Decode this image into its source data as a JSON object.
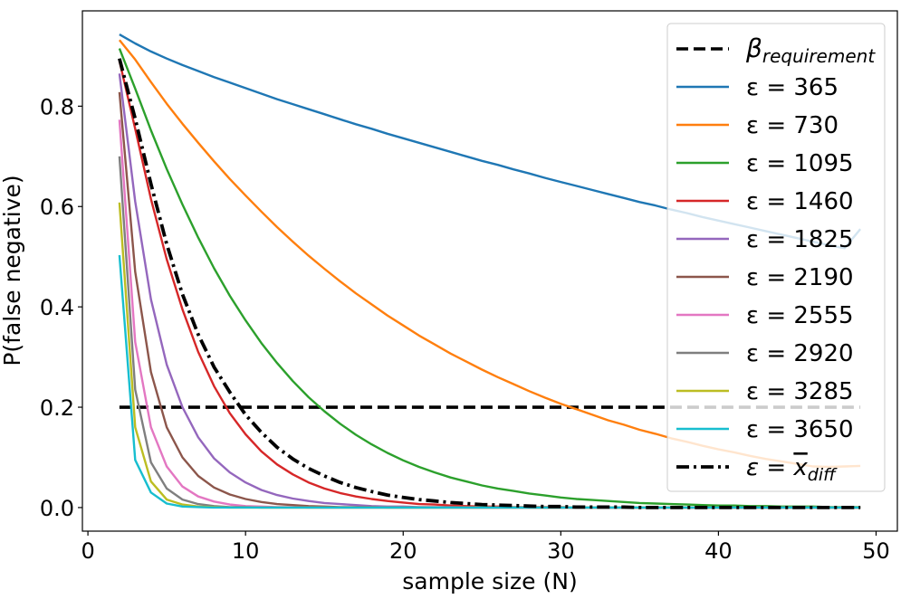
{
  "chart_data": {
    "type": "line",
    "title": "",
    "xlabel": "sample size (N)",
    "ylabel": "P(false negative)",
    "xlim": [
      -0.35,
      51.35
    ],
    "ylim": [
      -0.047,
      0.99
    ],
    "xticks": [
      0,
      10,
      20,
      30,
      40,
      50
    ],
    "yticks": [
      0.0,
      0.2,
      0.4,
      0.6,
      0.8
    ],
    "ytick_labels": [
      "0.0",
      "0.2",
      "0.4",
      "0.6",
      "0.8"
    ],
    "grid": false,
    "legend_position": "upper right",
    "x": [
      2,
      3,
      4,
      5,
      6,
      7,
      8,
      9,
      10,
      11,
      12,
      13,
      14,
      15,
      16,
      17,
      18,
      19,
      20,
      21,
      22,
      23,
      24,
      25,
      26,
      27,
      28,
      29,
      30,
      31,
      32,
      33,
      34,
      35,
      36,
      37,
      38,
      39,
      40,
      41,
      42,
      43,
      44,
      45,
      46,
      47,
      48,
      49
    ],
    "threshold": {
      "name": "β_requirement",
      "name_base": "β",
      "name_sub": "requirement",
      "value": 0.2,
      "x_range": [
        2,
        49
      ],
      "color": "#000000",
      "style": "dashed"
    },
    "series": [
      {
        "name": "ε = 365",
        "color": "#1f77b4",
        "values": [
          0.943,
          0.925,
          0.909,
          0.895,
          0.882,
          0.87,
          0.858,
          0.847,
          0.836,
          0.825,
          0.814,
          0.804,
          0.794,
          0.784,
          0.774,
          0.764,
          0.755,
          0.745,
          0.736,
          0.727,
          0.718,
          0.709,
          0.7,
          0.691,
          0.683,
          0.674,
          0.666,
          0.657,
          0.649,
          0.641,
          0.633,
          0.625,
          0.617,
          0.609,
          0.602,
          0.594,
          0.587,
          0.579,
          0.572,
          0.565,
          0.558,
          0.551,
          0.544,
          0.537,
          0.53,
          0.523,
          0.517,
          0.555
        ]
      },
      {
        "name": "ε = 730",
        "color": "#ff7f0e",
        "values": [
          0.932,
          0.893,
          0.848,
          0.805,
          0.765,
          0.727,
          0.69,
          0.655,
          0.622,
          0.59,
          0.559,
          0.53,
          0.502,
          0.476,
          0.451,
          0.427,
          0.405,
          0.383,
          0.363,
          0.343,
          0.325,
          0.307,
          0.291,
          0.275,
          0.26,
          0.246,
          0.232,
          0.219,
          0.207,
          0.196,
          0.185,
          0.174,
          0.165,
          0.155,
          0.147,
          0.138,
          0.131,
          0.123,
          0.116,
          0.11,
          0.103,
          0.097,
          0.092,
          0.087,
          0.082,
          0.081,
          0.082,
          0.083
        ]
      },
      {
        "name": "ε = 1095",
        "color": "#2ca02c",
        "values": [
          0.915,
          0.835,
          0.752,
          0.675,
          0.604,
          0.538,
          0.477,
          0.422,
          0.373,
          0.328,
          0.288,
          0.252,
          0.22,
          0.192,
          0.167,
          0.145,
          0.126,
          0.109,
          0.094,
          0.081,
          0.07,
          0.06,
          0.052,
          0.044,
          0.038,
          0.033,
          0.028,
          0.024,
          0.02,
          0.017,
          0.015,
          0.013,
          0.011,
          0.009,
          0.008,
          0.007,
          0.006,
          0.005,
          0.004,
          0.004,
          0.003,
          0.003,
          0.002,
          0.002,
          0.002,
          0.001,
          0.001,
          0.001
        ]
      },
      {
        "name": "ε = 1460",
        "color": "#d62728",
        "values": [
          0.89,
          0.755,
          0.615,
          0.495,
          0.395,
          0.31,
          0.242,
          0.188,
          0.146,
          0.112,
          0.086,
          0.066,
          0.05,
          0.038,
          0.029,
          0.022,
          0.017,
          0.013,
          0.01,
          0.007,
          0.006,
          0.004,
          0.003,
          0.002,
          0.002,
          0.001,
          0.001,
          0.001,
          0.001,
          0.0,
          0.0,
          0.0,
          0.0,
          0.0,
          0.0,
          0.0,
          0.0,
          0.0,
          0.0,
          0.0,
          0.0,
          0.0,
          0.0,
          0.0,
          0.0,
          0.0,
          0.0,
          0.0
        ]
      },
      {
        "name": "ε = 1825",
        "color": "#9467bd",
        "values": [
          0.865,
          0.61,
          0.415,
          0.285,
          0.2,
          0.14,
          0.098,
          0.07,
          0.05,
          0.035,
          0.025,
          0.018,
          0.013,
          0.009,
          0.007,
          0.005,
          0.003,
          0.002,
          0.002,
          0.001,
          0.001,
          0.001,
          0.0,
          0.0,
          0.0,
          0.0,
          0.0,
          0.0,
          0.0,
          0.0,
          0.0,
          0.0,
          0.0,
          0.0,
          0.0,
          0.0,
          0.0,
          0.0,
          0.0,
          0.0,
          0.0,
          0.0,
          0.0,
          0.0,
          0.0,
          0.0,
          0.0,
          0.0
        ]
      },
      {
        "name": "ε = 2190",
        "color": "#8c564b",
        "values": [
          0.828,
          0.47,
          0.27,
          0.16,
          0.1,
          0.063,
          0.04,
          0.026,
          0.017,
          0.011,
          0.007,
          0.005,
          0.003,
          0.002,
          0.001,
          0.001,
          0.001,
          0.0,
          0.0,
          0.0,
          0.0,
          0.0,
          0.0,
          0.0,
          0.0,
          0.0,
          0.0,
          0.0,
          0.0,
          0.0,
          0.0,
          0.0,
          0.0,
          0.0,
          0.0,
          0.0,
          0.0,
          0.0,
          0.0,
          0.0,
          0.0,
          0.0,
          0.0,
          0.0,
          0.0,
          0.0,
          0.0,
          0.0
        ]
      },
      {
        "name": "ε = 2555",
        "color": "#e377c2",
        "values": [
          0.773,
          0.33,
          0.16,
          0.082,
          0.042,
          0.022,
          0.012,
          0.006,
          0.003,
          0.002,
          0.001,
          0.001,
          0.0,
          0.0,
          0.0,
          0.0,
          0.0,
          0.0,
          0.0,
          0.0,
          0.0,
          0.0,
          0.0,
          0.0,
          0.0,
          0.0,
          0.0,
          0.0,
          0.0,
          0.0,
          0.0,
          0.0,
          0.0,
          0.0,
          0.0,
          0.0,
          0.0,
          0.0,
          0.0,
          0.0,
          0.0,
          0.0,
          0.0,
          0.0,
          0.0,
          0.0,
          0.0,
          0.0
        ]
      },
      {
        "name": "ε = 2920",
        "color": "#7f7f7f",
        "values": [
          0.7,
          0.235,
          0.09,
          0.038,
          0.016,
          0.007,
          0.003,
          0.001,
          0.001,
          0.0,
          0.0,
          0.0,
          0.0,
          0.0,
          0.0,
          0.0,
          0.0,
          0.0,
          0.0,
          0.0,
          0.0,
          0.0,
          0.0,
          0.0,
          0.0,
          0.0,
          0.0,
          0.0,
          0.0,
          0.0,
          0.0,
          0.0,
          0.0,
          0.0,
          0.0,
          0.0,
          0.0,
          0.0,
          0.0,
          0.0,
          0.0,
          0.0,
          0.0,
          0.0,
          0.0,
          0.0,
          0.0,
          0.0
        ]
      },
      {
        "name": "ε = 3285",
        "color": "#bcbd22",
        "values": [
          0.608,
          0.16,
          0.052,
          0.016,
          0.006,
          0.002,
          0.001,
          0.0,
          0.0,
          0.0,
          0.0,
          0.0,
          0.0,
          0.0,
          0.0,
          0.0,
          0.0,
          0.0,
          0.0,
          0.0,
          0.0,
          0.0,
          0.0,
          0.0,
          0.0,
          0.0,
          0.0,
          0.0,
          0.0,
          0.0,
          0.0,
          0.0,
          0.0,
          0.0,
          0.0,
          0.0,
          0.0,
          0.0,
          0.0,
          0.0,
          0.0,
          0.0,
          0.0,
          0.0,
          0.0,
          0.0,
          0.0,
          0.0
        ]
      },
      {
        "name": "ε = 3650",
        "color": "#17becf",
        "values": [
          0.503,
          0.095,
          0.03,
          0.008,
          0.002,
          0.001,
          0.0,
          0.0,
          0.0,
          0.0,
          0.0,
          0.0,
          0.0,
          0.0,
          0.0,
          0.0,
          0.0,
          0.0,
          0.0,
          0.0,
          0.0,
          0.0,
          0.0,
          0.0,
          0.0,
          0.0,
          0.0,
          0.0,
          0.0,
          0.0,
          0.0,
          0.0,
          0.0,
          0.0,
          0.0,
          0.0,
          0.0,
          0.0,
          0.0,
          0.0,
          0.0,
          0.0,
          0.0,
          0.0,
          0.0,
          0.0,
          0.0,
          0.0
        ]
      },
      {
        "name": "ε = x̄_diff",
        "name_base": "ε = ",
        "name_var": "x",
        "name_sub": "diff",
        "color": "#000000",
        "style": "dashdot",
        "values": [
          0.895,
          0.775,
          0.645,
          0.525,
          0.425,
          0.345,
          0.28,
          0.23,
          0.185,
          0.15,
          0.12,
          0.097,
          0.078,
          0.063,
          0.05,
          0.04,
          0.032,
          0.025,
          0.02,
          0.016,
          0.013,
          0.01,
          0.008,
          0.006,
          0.005,
          0.004,
          0.003,
          0.002,
          0.002,
          0.001,
          0.001,
          0.001,
          0.001,
          0.0,
          0.0,
          0.0,
          0.0,
          0.0,
          0.0,
          0.0,
          0.0,
          0.0,
          0.0,
          0.0,
          0.0,
          0.0,
          0.0,
          0.0
        ]
      }
    ]
  }
}
